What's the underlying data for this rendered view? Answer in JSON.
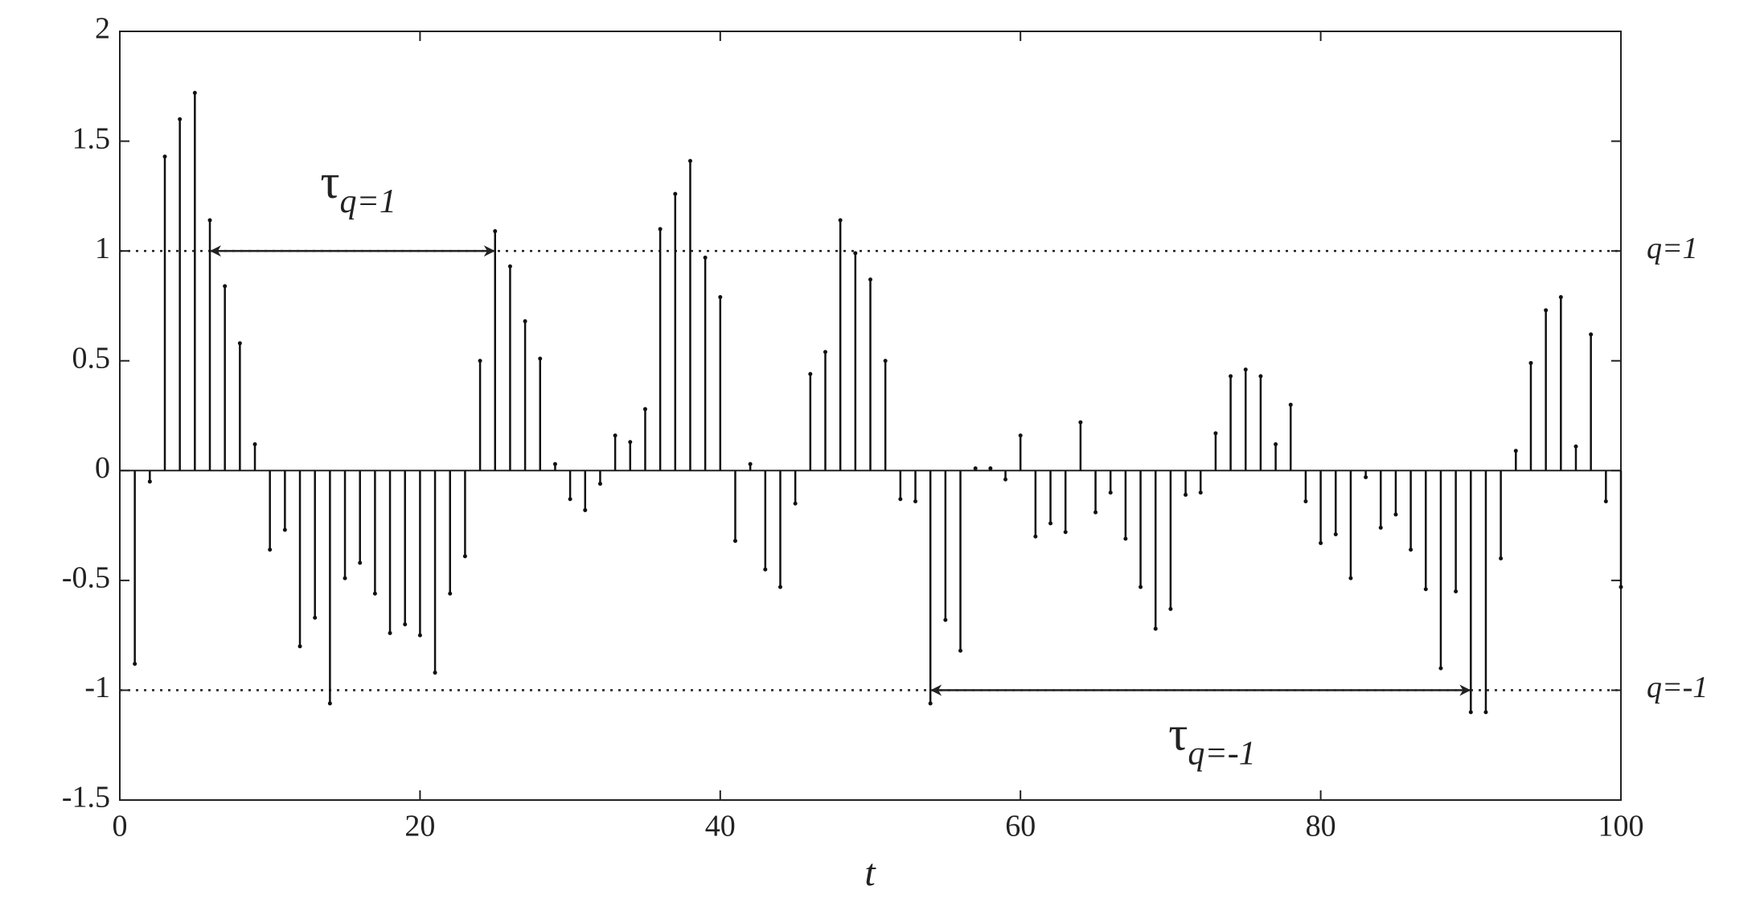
{
  "chart_data": {
    "type": "stem",
    "xlabel": "t",
    "x": [
      1,
      2,
      3,
      4,
      5,
      6,
      7,
      8,
      9,
      10,
      11,
      12,
      13,
      14,
      15,
      16,
      17,
      18,
      19,
      20,
      21,
      22,
      23,
      24,
      25,
      26,
      27,
      28,
      29,
      30,
      31,
      32,
      33,
      34,
      35,
      36,
      37,
      38,
      39,
      40,
      41,
      42,
      43,
      44,
      45,
      46,
      47,
      48,
      49,
      50,
      51,
      52,
      53,
      54,
      55,
      56,
      57,
      58,
      59,
      60,
      61,
      62,
      63,
      64,
      65,
      66,
      67,
      68,
      69,
      70,
      71,
      72,
      73,
      74,
      75,
      76,
      77,
      78,
      79,
      80,
      81,
      82,
      83,
      84,
      85,
      86,
      87,
      88,
      89,
      90,
      91,
      92,
      93,
      94,
      95,
      96,
      97,
      98,
      99,
      100
    ],
    "values": [
      -0.88,
      -0.05,
      1.43,
      1.6,
      1.72,
      1.14,
      0.84,
      0.58,
      0.12,
      -0.36,
      -0.27,
      -0.8,
      -0.67,
      -1.06,
      -0.49,
      -0.42,
      -0.56,
      -0.74,
      -0.7,
      -0.75,
      -0.92,
      -0.56,
      -0.39,
      0.5,
      1.09,
      0.93,
      0.68,
      0.51,
      0.03,
      -0.13,
      -0.18,
      -0.06,
      0.16,
      0.13,
      0.28,
      1.1,
      1.26,
      1.41,
      0.97,
      0.79,
      -0.32,
      0.03,
      -0.45,
      -0.53,
      -0.15,
      0.44,
      0.54,
      1.14,
      0.99,
      0.87,
      0.5,
      -0.13,
      -0.14,
      -1.06,
      -0.68,
      -0.82,
      0.01,
      0.01,
      -0.04,
      0.16,
      -0.3,
      -0.24,
      -0.28,
      0.22,
      -0.19,
      -0.1,
      -0.31,
      -0.53,
      -0.72,
      -0.63,
      -0.11,
      -0.1,
      0.17,
      0.43,
      0.46,
      0.43,
      0.12,
      0.3,
      -0.14,
      -0.33,
      -0.29,
      -0.49,
      -0.03,
      -0.26,
      -0.2,
      -0.36,
      -0.54,
      -0.9,
      -0.55,
      -1.1,
      -1.1,
      -0.4,
      0.09,
      0.49,
      0.73,
      0.79,
      0.11,
      0.62,
      -0.14,
      -0.53
    ],
    "color": "#111111",
    "xlim": [
      0,
      100
    ],
    "xticks": [
      0,
      20,
      40,
      60,
      80,
      100
    ],
    "ylim": [
      -1.5,
      2
    ],
    "yticks": [
      -1.5,
      -1,
      -0.5,
      0,
      0.5,
      1,
      1.5,
      2
    ],
    "thresholds": [
      {
        "value": 1,
        "label": "q=1"
      },
      {
        "value": -1,
        "label": "q=-1"
      }
    ],
    "arrows": [
      {
        "symbol": "τ",
        "subscript": "q=1",
        "x_start": 6,
        "x_end": 25,
        "y": 1
      },
      {
        "symbol": "τ",
        "subscript": "q=-1",
        "x_start": 54,
        "x_end": 90,
        "y": -1
      }
    ]
  }
}
